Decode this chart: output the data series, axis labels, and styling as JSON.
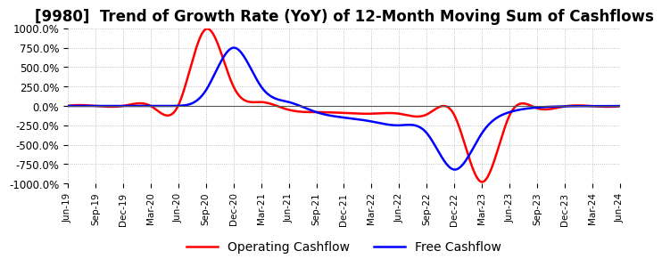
{
  "title": "[9980]  Trend of Growth Rate (YoY) of 12-Month Moving Sum of Cashflows",
  "ylim": [
    -1000,
    1000
  ],
  "yticks": [
    -1000,
    -750,
    -500,
    -250,
    0,
    250,
    500,
    750,
    1000
  ],
  "ytick_labels": [
    "-1000.0%",
    "-750.0%",
    "-500.0%",
    "-250.0%",
    "0.0%",
    "250.0%",
    "500.0%",
    "750.0%",
    "1000.0%"
  ],
  "x_labels": [
    "Jun-19",
    "Sep-19",
    "Dec-19",
    "Mar-20",
    "Jun-20",
    "Sep-20",
    "Dec-20",
    "Mar-21",
    "Jun-21",
    "Sep-21",
    "Dec-21",
    "Mar-22",
    "Jun-22",
    "Sep-22",
    "Dec-22",
    "Mar-23",
    "Jun-23",
    "Sep-23",
    "Dec-23",
    "Mar-24",
    "Jun-24"
  ],
  "operating_cashflow": [
    0,
    0,
    0,
    0,
    5,
    990,
    250,
    50,
    -50,
    -80,
    -90,
    -100,
    -100,
    -110,
    -120,
    -980,
    -120,
    -30,
    -5,
    -2,
    -1
  ],
  "free_cashflow": [
    0,
    0,
    0,
    0,
    2,
    200,
    750,
    250,
    50,
    -80,
    -150,
    -200,
    -250,
    -350,
    -820,
    -350,
    -80,
    -20,
    -5,
    -2,
    -1
  ],
  "operating_color": "#ff0000",
  "free_color": "#0000ff",
  "background_color": "#ffffff",
  "grid_color": "#b0b0b0",
  "title_fontsize": 12,
  "legend_labels": [
    "Operating Cashflow",
    "Free Cashflow"
  ]
}
